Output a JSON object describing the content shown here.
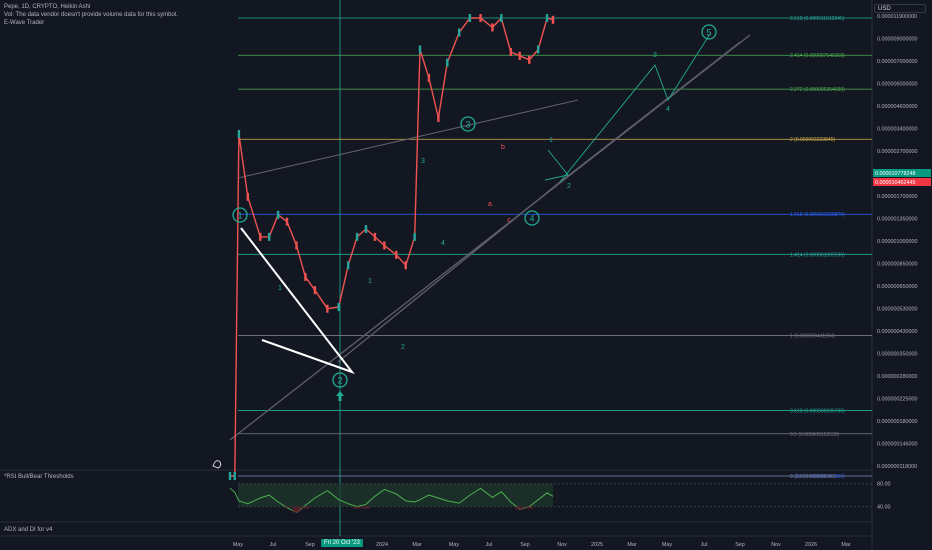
{
  "header": {
    "title": "Pepe, 1D, CRYPTO, Heikin Ashi",
    "vol_note": "Vol: The data vendor doesn't provide volume data for this symbol.",
    "indicator": "E-Wave Trader"
  },
  "currency": "USD",
  "rsi_label": "*RSI Bull/Bear Thresholds",
  "adx_label": "ADX and DI for v4",
  "crosshair_date": "Fri 20 Oct '23",
  "time_axis": [
    "May",
    "Jul",
    "Sep",
    "2024",
    "Mar",
    "May",
    "Jul",
    "Sep",
    "Nov",
    "2025",
    "Mar",
    "May",
    "Jul",
    "Sep",
    "Nov",
    "2026",
    "Mar"
  ],
  "price_axis": [
    "0.000011900000",
    "0.000009000000",
    "0.000007000000",
    "0.000006000000",
    "0.000004600000",
    "0.000003400000",
    "0.000002700000",
    "0.000002000000",
    "0.000001700000",
    "0.000001350000",
    "0.000001000000",
    "0.000000850000",
    "0.000000650000",
    "0.000000530000",
    "0.000000430000",
    "0.000000350000",
    "0.000000280000",
    "0.000000225000",
    "0.000000180000",
    "0.000000146000",
    "0.000000118000"
  ],
  "rsi_axis": [
    "80.00",
    "40.00"
  ],
  "price_badges": [
    {
      "value": "0.000010778248",
      "color": "#089981"
    },
    {
      "value": "0.000010462445",
      "color": "#f23645"
    }
  ],
  "fib_levels": [
    {
      "label": "2.618 (0.000011010245)",
      "price": 1.1010245e-05,
      "color": "#22ab94"
    },
    {
      "label": "2.414 (0.000007545318)",
      "price": 7.545318e-06,
      "color": "#4caf50"
    },
    {
      "label": "2.272 (0.000005354039)",
      "price": 5.354039e-06,
      "color": "#4caf50"
    },
    {
      "label": "2 (0.000003223845)",
      "price": 3.223845e-06,
      "color": "#d4b24c"
    },
    {
      "label": "1.618 (0.000001508876)",
      "price": 1.508876e-06,
      "color": "#2962ff"
    },
    {
      "label": "1.414 (0.000001005596)",
      "price": 1.005596e-06,
      "color": "#22ab94"
    },
    {
      "label": "1 (0.000000441804)",
      "price": 4.41804e-07,
      "color": "#787b86"
    },
    {
      "label": "0.618 (0.000000206780)",
      "price": 2.0678e-07,
      "color": "#22ab94"
    },
    {
      "label": "0.5 (0.000000163533)",
      "price": 1.63533e-07,
      "color": "#787b86"
    },
    {
      "label": "0.236 (0.000000097806)",
      "price": 9.7806e-08,
      "color": "#2962ff"
    },
    {
      "label": "0 (0.000000060546)",
      "price": 6.0546e-08,
      "color": "#787b86"
    }
  ],
  "wave_labels": {
    "major": [
      "1",
      "2",
      "3",
      "4",
      "5"
    ],
    "minor": [
      "1",
      "2",
      "3",
      "4",
      "5",
      "a",
      "b",
      "c"
    ]
  },
  "chart_data": {
    "type": "line",
    "scale": "log",
    "title": "Pepe, 1D, CRYPTO, Heikin Ashi",
    "series": [
      {
        "x": [
          "2023-04-20",
          "2023-04-28",
          "2023-05-05",
          "2023-05-20",
          "2023-06-10",
          "2023-06-25",
          "2023-07-10",
          "2023-07-25",
          "2023-08-10",
          "2023-08-25",
          "2023-09-10",
          "2023-10-01",
          "2023-10-20",
          "2023-11-05",
          "2023-11-20",
          "2023-12-05",
          "2023-12-20",
          "2024-01-05",
          "2024-01-25",
          "2024-02-10",
          "2024-02-25",
          "2024-03-05",
          "2024-03-20",
          "2024-04-05",
          "2024-04-20",
          "2024-05-10",
          "2024-05-28",
          "2024-06-15",
          "2024-07-05",
          "2024-07-20",
          "2024-08-05",
          "2024-08-20",
          "2024-09-05",
          "2024-09-20",
          "2024-10-05",
          "2024-10-15"
        ],
        "values": [
          8e-08,
          1e-07,
          3.4e-06,
          1.8e-06,
          1.2e-06,
          1.2e-06,
          1.5e-06,
          1.4e-06,
          1.1e-06,
          8e-07,
          7e-07,
          5.8e-07,
          5.9e-07,
          9e-07,
          1.2e-06,
          1.3e-06,
          1.2e-06,
          1.1e-06,
          1e-06,
          9e-07,
          1.2e-06,
          8e-06,
          6e-06,
          4e-06,
          7e-06,
          9.5e-06,
          1.7e-05,
          1.2e-05,
          1e-05,
          1.4e-05,
          7.8e-06,
          7.5e-06,
          7.2e-06,
          8e-06,
          1.1e-05,
          1.08e-05
        ]
      }
    ],
    "rsi": {
      "thresholds": [
        80,
        40
      ],
      "values": [
        72,
        65,
        50,
        45,
        55,
        60,
        48,
        38,
        30,
        42,
        55,
        68,
        52,
        45,
        40,
        44,
        58,
        70,
        62,
        50,
        48,
        52,
        60,
        55,
        50,
        46,
        60,
        72,
        56,
        66,
        48,
        35,
        40,
        52,
        64,
        58
      ]
    },
    "wave_points": [
      {
        "label": "1",
        "x": "2023-05-05",
        "y": 3.4e-06
      },
      {
        "label": "2",
        "x": "2023-10-20",
        "y": 5.9e-07
      },
      {
        "label": "3",
        "x": "2024-05-28",
        "y": 1.7e-05
      },
      {
        "label": "4",
        "x": "2024-09-05",
        "y": 7.2e-06
      },
      {
        "label": "5",
        "x": "2025-07-30",
        "y": 1.1e-05
      }
    ],
    "ylim": [
      9e-10,
      1.2e-05
    ]
  }
}
